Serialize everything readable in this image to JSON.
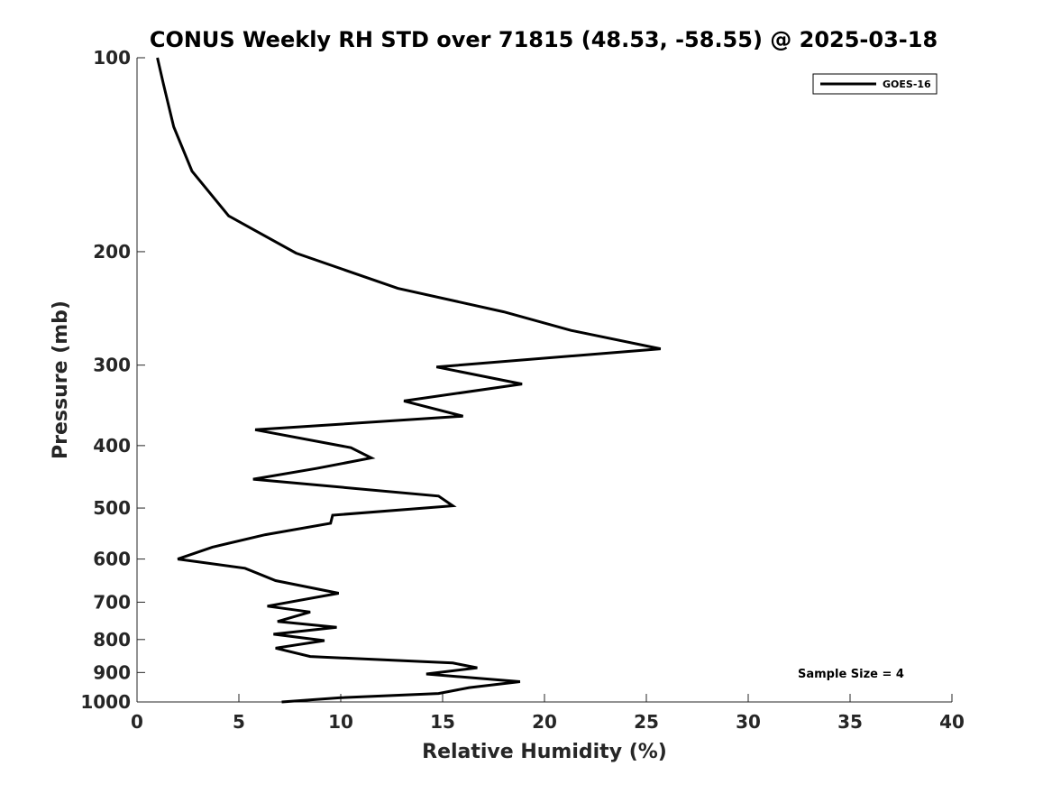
{
  "chart_data": {
    "type": "line",
    "title": "CONUS Weekly RH STD over 71815 (48.53, -58.55) @ 2025-03-18",
    "xlabel": "Relative Humidity (%)",
    "ylabel": "Pressure (mb)",
    "xlim": [
      0,
      40
    ],
    "ylim": [
      100,
      1000
    ],
    "yscale": "log",
    "y_reversed": true,
    "grid": false,
    "legend_position": "top-right",
    "xticks": [
      0,
      5,
      10,
      15,
      20,
      25,
      30,
      35,
      40
    ],
    "xtick_labels": [
      "0",
      "5",
      "10",
      "15",
      "20",
      "25",
      "30",
      "35",
      "40"
    ],
    "yticks": [
      100,
      200,
      300,
      400,
      500,
      600,
      700,
      800,
      900,
      1000
    ],
    "ytick_labels": [
      "100",
      "200",
      "300",
      "400",
      "500",
      "600",
      "700",
      "800",
      "900",
      "1000"
    ],
    "series": [
      {
        "name": "GOES-16",
        "color": "#000000",
        "x": [
          1.0,
          1.3,
          1.8,
          2.7,
          4.5,
          7.8,
          12.8,
          18.0,
          21.3,
          25.7,
          14.7,
          18.9,
          13.1,
          16.0,
          5.8,
          10.5,
          11.5,
          8.8,
          5.7,
          14.8,
          15.5,
          9.6,
          9.5,
          6.3,
          3.7,
          2.0,
          5.3,
          6.8,
          9.9,
          6.4,
          8.5,
          6.9,
          9.8,
          6.7,
          9.2,
          6.8,
          8.5,
          15.5,
          16.7,
          14.2,
          18.8,
          16.3,
          14.8,
          10.0,
          7.1
        ],
        "y": [
          100,
          110,
          128,
          150,
          176,
          201,
          228,
          248,
          265,
          283,
          302,
          321,
          341,
          360,
          378,
          403,
          418,
          434,
          451,
          479,
          496,
          513,
          528,
          550,
          575,
          600,
          620,
          648,
          678,
          710,
          725,
          750,
          766,
          785,
          803,
          825,
          850,
          870,
          885,
          905,
          930,
          950,
          970,
          985,
          1000
        ]
      }
    ],
    "legend": {
      "entries": [
        "GOES-16"
      ]
    },
    "annotations": [
      {
        "text": "Sample Size = 4",
        "position": "bottom-right"
      }
    ]
  }
}
